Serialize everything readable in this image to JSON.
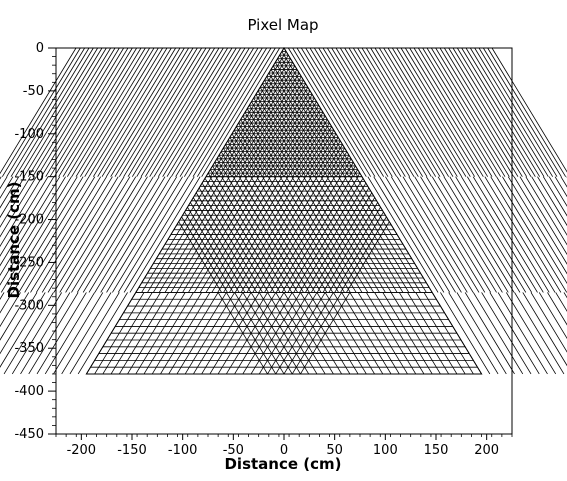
{
  "chart_data": {
    "type": "scatter",
    "title": "Pixel Map",
    "xlabel": "Distance (cm)",
    "ylabel": "Distance (cm)",
    "xlim": [
      -225,
      225
    ],
    "ylim": [
      -450,
      0
    ],
    "x_ticks": [
      -200,
      -150,
      -100,
      -50,
      0,
      50,
      100,
      150,
      200
    ],
    "y_ticks": [
      0,
      -50,
      -100,
      -150,
      -200,
      -250,
      -300,
      -350,
      -400,
      -450
    ],
    "x_tick_labels": [
      "-200",
      "-150",
      "-100",
      "-50",
      "0",
      "50",
      "100",
      "150",
      "200"
    ],
    "y_tick_labels": [
      "0",
      "-50",
      "-100",
      "-150",
      "-200",
      "-250",
      "-300",
      "-350",
      "-400",
      "-450"
    ],
    "grid": false,
    "triangle_vertices": [
      [
        0,
        0
      ],
      [
        -195,
        -380
      ],
      [
        195,
        -380
      ]
    ],
    "zones": [
      {
        "y_from": 0,
        "y_to": -150,
        "rows": 36
      },
      {
        "y_from": -150,
        "y_to": -285,
        "rows": 24
      },
      {
        "y_from": -285,
        "y_to": -380,
        "rows": 12
      }
    ],
    "line_color": "#000000"
  }
}
